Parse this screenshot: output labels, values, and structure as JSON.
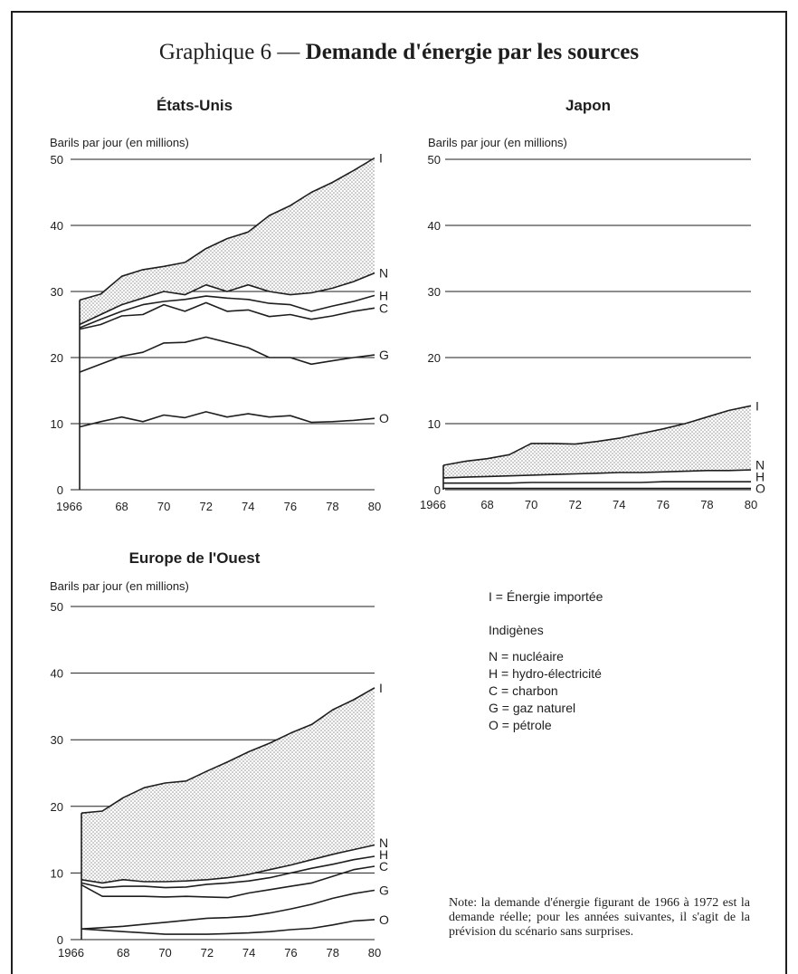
{
  "title": {
    "prefix": "Graphique 6 —",
    "main": "Demande d'énergie par les sources"
  },
  "colors": {
    "ink": "#1e1e1e",
    "paper": "#ffffff",
    "dots": "#8a8a8a"
  },
  "legend": {
    "imported": "I = Énergie importée",
    "indigenous_heading": "Indigènes",
    "items": [
      "N = nucléaire",
      "H = hydro-électricité",
      "C = charbon",
      "G = gaz naturel",
      "O = pétrole"
    ]
  },
  "note": "Note: la demande d'énergie figurant de 1966 à 1972 est la demande réelle; pour les années suivantes, il s'agit de la prévision du scénario sans surprises.",
  "chart_data": [
    {
      "type": "area",
      "title": "États-Unis",
      "ylabel": "Barils par jour (en millions)",
      "x": [
        1966,
        1967,
        1968,
        1969,
        1970,
        1971,
        1972,
        1973,
        1974,
        1975,
        1976,
        1977,
        1978,
        1979,
        1980
      ],
      "x_ticks": [
        "1966",
        "68",
        "70",
        "72",
        "74",
        "76",
        "78",
        "80"
      ],
      "y_ticks": [
        "0",
        "10",
        "20",
        "30",
        "40",
        "50"
      ],
      "ylim": [
        0,
        50
      ],
      "grid": true,
      "shaded_series": "I",
      "series": [
        {
          "name": "O",
          "values": [
            9.5,
            10.3,
            11.0,
            10.3,
            11.3,
            10.9,
            11.8,
            11.0,
            11.5,
            11.0,
            11.2,
            10.2,
            10.3,
            10.5,
            10.8
          ]
        },
        {
          "name": "G",
          "values": [
            17.8,
            19.0,
            20.2,
            20.8,
            22.2,
            22.3,
            23.1,
            22.3,
            21.5,
            20.0,
            20.0,
            19.0,
            19.5,
            20.0,
            20.4
          ]
        },
        {
          "name": "C",
          "values": [
            24.3,
            25.0,
            26.3,
            26.5,
            28.0,
            27.0,
            28.3,
            27.0,
            27.2,
            26.2,
            26.5,
            25.8,
            26.3,
            27.0,
            27.5
          ]
        },
        {
          "name": "H",
          "values": [
            24.5,
            25.8,
            27.0,
            28.0,
            28.5,
            28.8,
            29.3,
            29.0,
            28.8,
            28.2,
            28.0,
            27.0,
            27.8,
            28.5,
            29.4
          ]
        },
        {
          "name": "N",
          "values": [
            25.0,
            26.5,
            28.0,
            29.0,
            30.0,
            29.5,
            31.0,
            30.0,
            31.0,
            30.0,
            29.5,
            29.8,
            30.5,
            31.5,
            32.8
          ]
        },
        {
          "name": "I",
          "values": [
            28.7,
            29.6,
            32.3,
            33.3,
            33.8,
            34.4,
            36.5,
            38.0,
            39.0,
            41.5,
            43.0,
            45.0,
            46.5,
            48.3,
            50.2
          ]
        }
      ],
      "labels": [
        "I",
        "N",
        "H",
        "C",
        "G",
        "O"
      ]
    },
    {
      "type": "area",
      "title": "Japon",
      "ylabel": "Barils par jour (en millions)",
      "x": [
        1966,
        1967,
        1968,
        1969,
        1970,
        1971,
        1972,
        1973,
        1974,
        1975,
        1976,
        1977,
        1978,
        1979,
        1980
      ],
      "x_ticks": [
        "1966",
        "68",
        "70",
        "72",
        "74",
        "76",
        "78",
        "80"
      ],
      "y_ticks": [
        "50",
        "40",
        "30",
        "20",
        "10",
        "0"
      ],
      "ylim": [
        0,
        50
      ],
      "grid": true,
      "shaded_series": "I",
      "series": [
        {
          "name": "O",
          "values": [
            0.2,
            0.2,
            0.2,
            0.2,
            0.2,
            0.2,
            0.2,
            0.2,
            0.2,
            0.2,
            0.2,
            0.2,
            0.2,
            0.2,
            0.2
          ]
        },
        {
          "name": "H",
          "values": [
            1.0,
            1.0,
            1.0,
            1.0,
            1.1,
            1.1,
            1.1,
            1.1,
            1.1,
            1.1,
            1.2,
            1.2,
            1.2,
            1.2,
            1.2
          ]
        },
        {
          "name": "N",
          "values": [
            1.8,
            1.9,
            2.0,
            2.1,
            2.2,
            2.3,
            2.4,
            2.5,
            2.6,
            2.6,
            2.7,
            2.8,
            2.9,
            2.9,
            3.0
          ]
        },
        {
          "name": "I",
          "values": [
            3.7,
            4.3,
            4.7,
            5.3,
            7.0,
            7.0,
            6.9,
            7.3,
            7.8,
            8.5,
            9.2,
            10.0,
            11.0,
            12.0,
            12.7
          ]
        }
      ],
      "labels": [
        "I",
        "N",
        "H",
        "O"
      ]
    },
    {
      "type": "area",
      "title": "Europe de l'Ouest",
      "ylabel": "Barils par jour (en millions)",
      "x": [
        1966,
        1967,
        1968,
        1969,
        1970,
        1971,
        1972,
        1973,
        1974,
        1975,
        1976,
        1977,
        1978,
        1979,
        1980
      ],
      "x_ticks": [
        "1966",
        "68",
        "70",
        "72",
        "74",
        "76",
        "78",
        "80"
      ],
      "y_ticks": [
        "0",
        "10",
        "20",
        "30",
        "40",
        "50"
      ],
      "ylim": [
        0,
        50
      ],
      "grid": true,
      "shaded_series": "I",
      "series": [
        {
          "name": "O",
          "values": [
            1.6,
            1.4,
            1.2,
            1.0,
            0.8,
            0.8,
            0.8,
            0.9,
            1.0,
            1.2,
            1.5,
            1.7,
            2.2,
            2.8,
            3.0
          ]
        },
        {
          "name": "G",
          "values": [
            1.6,
            1.8,
            2.0,
            2.3,
            2.6,
            2.9,
            3.2,
            3.3,
            3.5,
            4.0,
            4.6,
            5.3,
            6.2,
            6.9,
            7.4
          ]
        },
        {
          "name": "C",
          "values": [
            8.2,
            6.5,
            6.5,
            6.5,
            6.4,
            6.5,
            6.4,
            6.3,
            7.0,
            7.5,
            8.0,
            8.5,
            9.5,
            10.5,
            11.0
          ]
        },
        {
          "name": "H",
          "values": [
            8.5,
            7.8,
            8.0,
            8.0,
            7.8,
            7.9,
            8.3,
            8.5,
            8.8,
            9.3,
            10.0,
            10.7,
            11.3,
            12.0,
            12.5
          ]
        },
        {
          "name": "N",
          "values": [
            9.0,
            8.5,
            9.0,
            8.7,
            8.7,
            8.8,
            9.0,
            9.3,
            9.8,
            10.5,
            11.2,
            12.0,
            12.8,
            13.5,
            14.2
          ]
        },
        {
          "name": "I",
          "values": [
            19.0,
            19.3,
            21.3,
            22.8,
            23.5,
            23.8,
            25.3,
            26.7,
            28.2,
            29.5,
            31.0,
            32.3,
            34.5,
            36.0,
            37.8
          ]
        }
      ],
      "labels": [
        "I",
        "N",
        "H",
        "C",
        "G",
        "O"
      ]
    }
  ]
}
